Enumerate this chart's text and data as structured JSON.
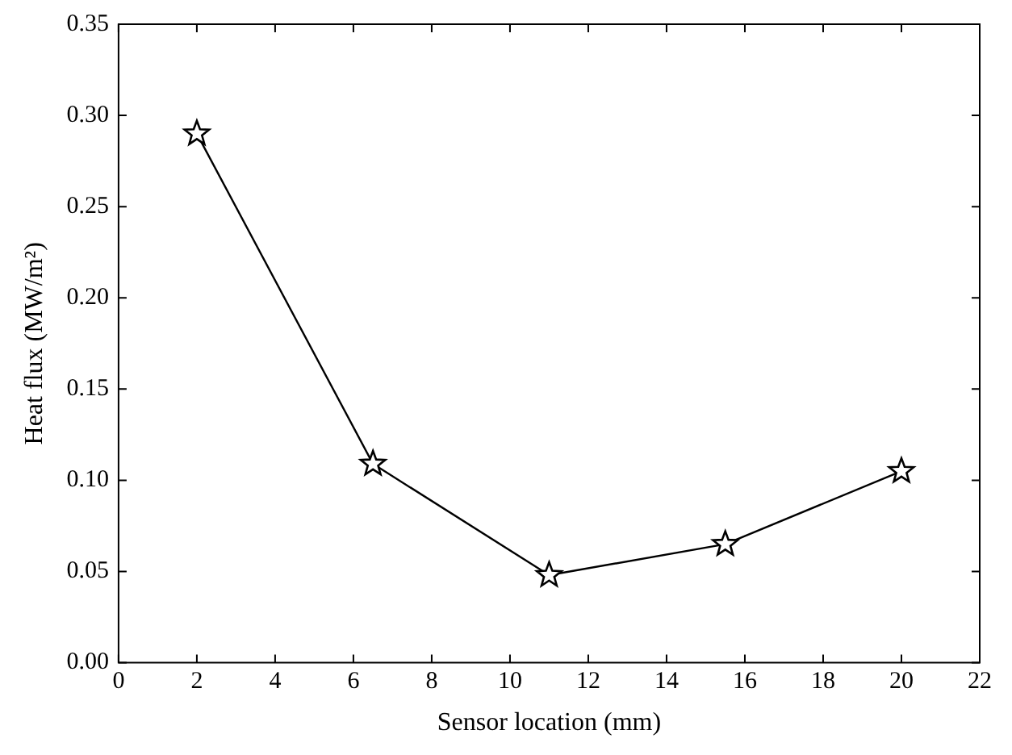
{
  "chart_data": {
    "type": "line",
    "xlabel": "Sensor location (mm)",
    "ylabel": "Heat flux (MW/m²)",
    "x": [
      2,
      6.5,
      11,
      15.5,
      20
    ],
    "series": [
      {
        "color": "#000000",
        "values": [
          0.29,
          0.109,
          0.048,
          0.065,
          0.105
        ]
      }
    ],
    "xlim": [
      0,
      22
    ],
    "xticks": [
      0,
      2,
      4,
      6,
      8,
      10,
      12,
      14,
      16,
      18,
      20,
      22
    ],
    "ylim": [
      0,
      0.35
    ],
    "yticks": [
      {
        "value": 0,
        "label": "0.00"
      },
      {
        "value": 0.05,
        "label": "0.05"
      },
      {
        "value": 0.1,
        "label": "0.10"
      },
      {
        "value": 0.15,
        "label": "0.15"
      },
      {
        "value": 0.2,
        "label": "0.20"
      },
      {
        "value": 0.25,
        "label": "0.25"
      },
      {
        "value": 0.3,
        "label": "0.30"
      },
      {
        "value": 0.35,
        "label": "0.35"
      }
    ],
    "grid": false,
    "legend": false,
    "marker": "star",
    "line_style": "solid"
  }
}
